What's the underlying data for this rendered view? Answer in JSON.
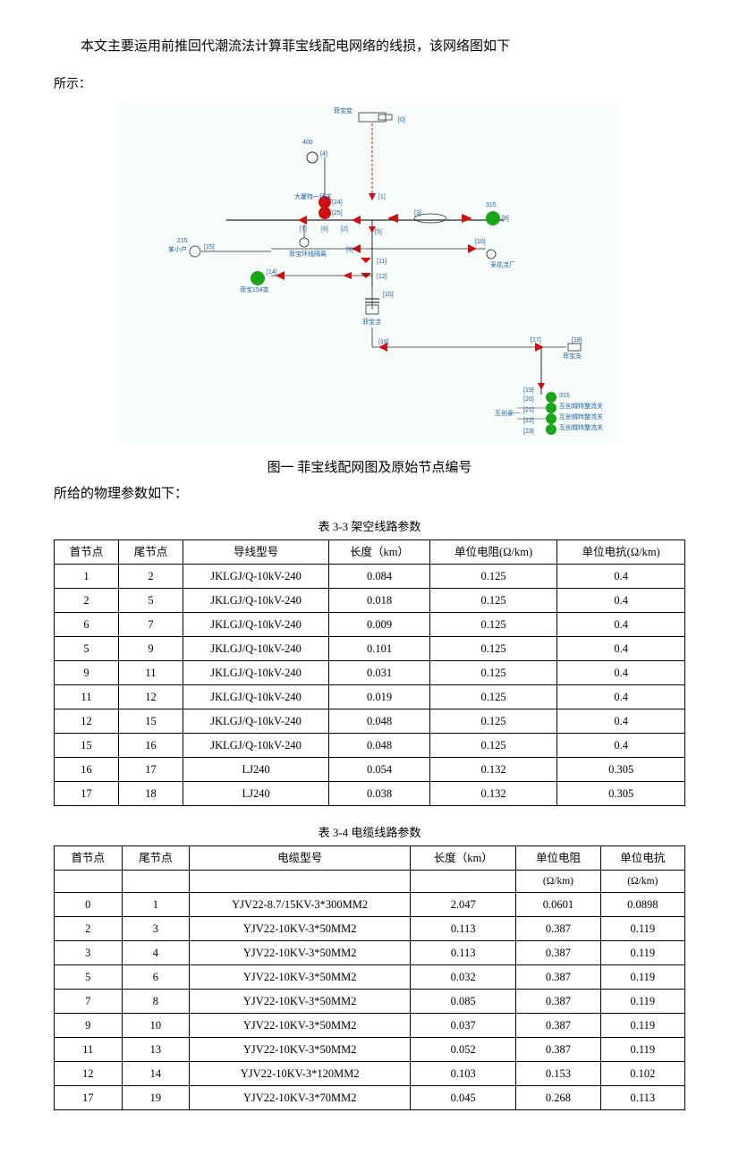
{
  "intro": {
    "line1": "本文主要运用前推回代潮流法计算菲宝线配电网络的线损，该网络图如下",
    "line2": "所示："
  },
  "figure_caption": "图一 菲宝线配网图及原始节点编号",
  "param_text": "所给的物理参数如下：",
  "table1": {
    "title": "表 3-3 架空线路参数",
    "columns": [
      "首节点",
      "尾节点",
      "导线型号",
      "长度（km）",
      "单位电阻(Ω/km)",
      "单位电抗(Ω/km)"
    ],
    "rows": [
      [
        "1",
        "2",
        "JKLGJ/Q-10kV-240",
        "0.084",
        "0.125",
        "0.4"
      ],
      [
        "2",
        "5",
        "JKLGJ/Q-10kV-240",
        "0.018",
        "0.125",
        "0.4"
      ],
      [
        "6",
        "7",
        "JKLGJ/Q-10kV-240",
        "0.009",
        "0.125",
        "0.4"
      ],
      [
        "5",
        "9",
        "JKLGJ/Q-10kV-240",
        "0.101",
        "0.125",
        "0.4"
      ],
      [
        "9",
        "11",
        "JKLGJ/Q-10kV-240",
        "0.031",
        "0.125",
        "0.4"
      ],
      [
        "11",
        "12",
        "JKLGJ/Q-10kV-240",
        "0.019",
        "0.125",
        "0.4"
      ],
      [
        "12",
        "15",
        "JKLGJ/Q-10kV-240",
        "0.048",
        "0.125",
        "0.4"
      ],
      [
        "15",
        "16",
        "JKLGJ/Q-10kV-240",
        "0.048",
        "0.125",
        "0.4"
      ],
      [
        "16",
        "17",
        "LJ240",
        "0.054",
        "0.132",
        "0.305"
      ],
      [
        "17",
        "18",
        "LJ240",
        "0.038",
        "0.132",
        "0.305"
      ]
    ]
  },
  "table2": {
    "title": "表 3-4 电缆线路参数",
    "columns": [
      "首节点",
      "尾节点",
      "电缆型号",
      "长度（km）",
      "单位电阻",
      "单位电抗"
    ],
    "sub_columns": [
      "",
      "",
      "",
      "",
      "(Ω/km)",
      "(Ω/km)"
    ],
    "rows": [
      [
        "0",
        "1",
        "YJV22-8.7/15KV-3*300MM2",
        "2.047",
        "0.0601",
        "0.0898"
      ],
      [
        "2",
        "3",
        "YJV22-10KV-3*50MM2",
        "0.113",
        "0.387",
        "0.119"
      ],
      [
        "3",
        "4",
        "YJV22-10KV-3*50MM2",
        "0.113",
        "0.387",
        "0.119"
      ],
      [
        "5",
        "6",
        "YJV22-10KV-3*50MM2",
        "0.032",
        "0.387",
        "0.119"
      ],
      [
        "7",
        "8",
        "YJV22-10KV-3*50MM2",
        "0.085",
        "0.387",
        "0.119"
      ],
      [
        "9",
        "10",
        "YJV22-10KV-3*50MM2",
        "0.037",
        "0.387",
        "0.119"
      ],
      [
        "11",
        "13",
        "YJV22-10KV-3*50MM2",
        "0.052",
        "0.387",
        "0.119"
      ],
      [
        "12",
        "14",
        "YJV22-10KV-3*120MM2",
        "0.103",
        "0.153",
        "0.102"
      ],
      [
        "17",
        "19",
        "YJV22-10KV-3*70MM2",
        "0.045",
        "0.268",
        "0.113"
      ]
    ]
  },
  "diagram": {
    "bg": "#f7fcfa",
    "label_color": "#1a5fa8",
    "red": "#d01010",
    "green": "#1aa61a",
    "line": "#2a2a2a"
  }
}
